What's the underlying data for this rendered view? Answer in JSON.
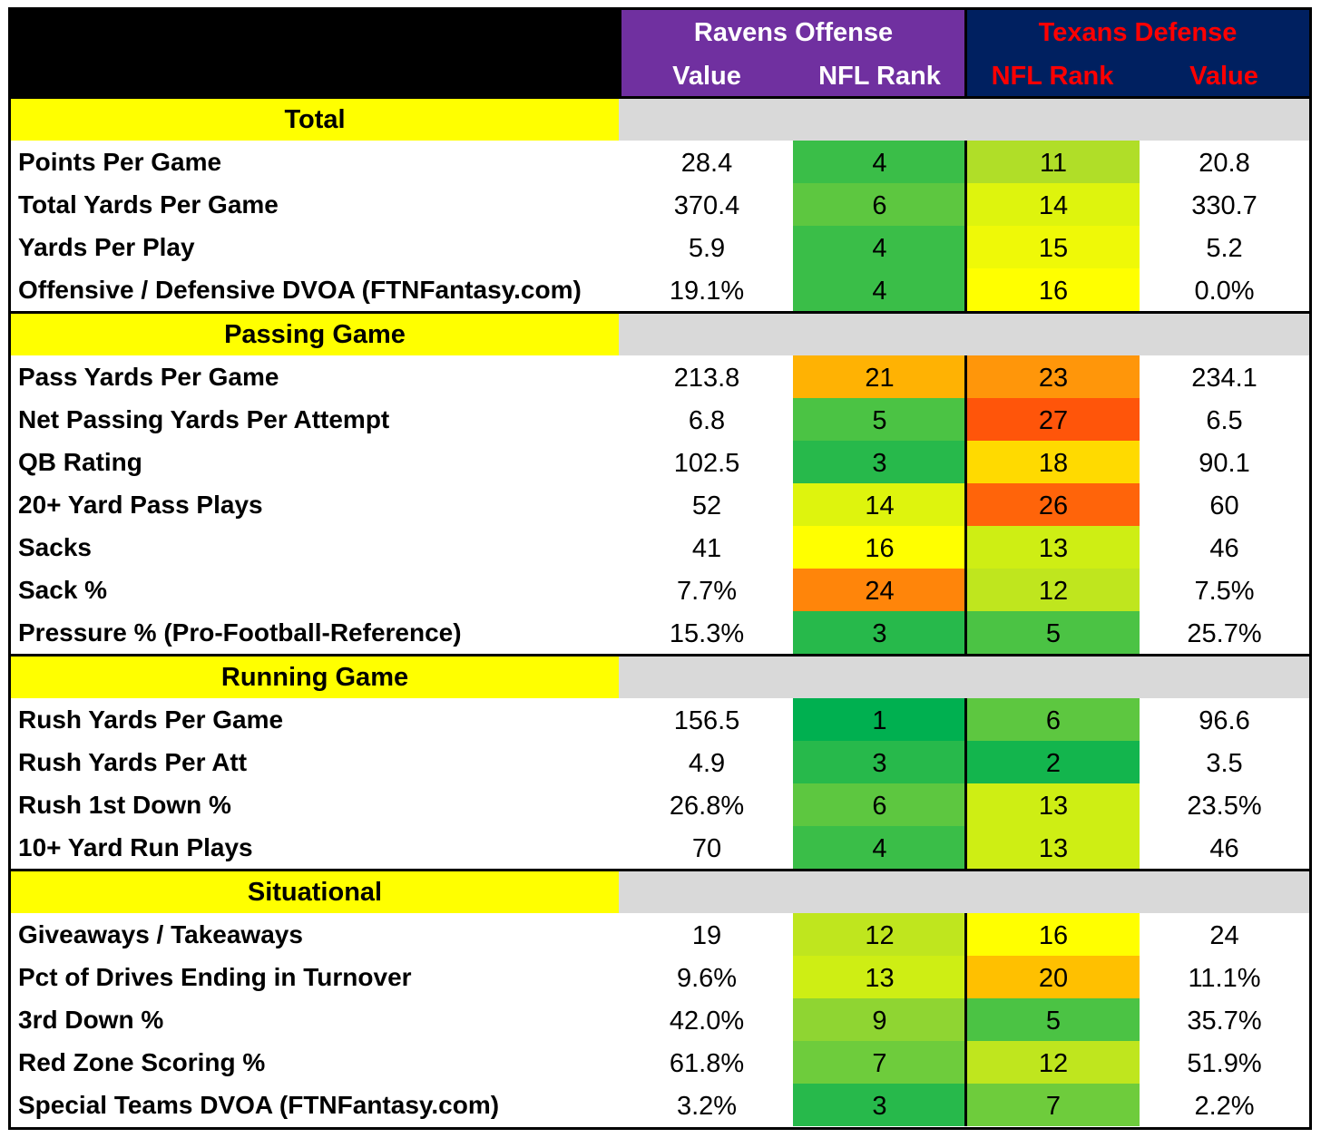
{
  "header": {
    "offense_team": "Ravens Offense",
    "defense_team": "Texans Defense",
    "col_value": "Value",
    "col_nfl_rank": "NFL Rank",
    "offense_color": "#7030a0",
    "defense_color": "#002060",
    "defense_text_color": "#ff0000"
  },
  "sections": [
    {
      "title": "Total",
      "rows": [
        {
          "label": "Points Per Game",
          "off_value": "28.4",
          "off_rank": "4",
          "def_rank": "11",
          "def_value": "20.8"
        },
        {
          "label": "Total Yards Per Game",
          "off_value": "370.4",
          "off_rank": "6",
          "def_rank": "14",
          "def_value": "330.7"
        },
        {
          "label": "Yards Per Play",
          "off_value": "5.9",
          "off_rank": "4",
          "def_rank": "15",
          "def_value": "5.2"
        },
        {
          "label": "Offensive / Defensive DVOA (FTNFantasy.com)",
          "off_value": "19.1%",
          "off_rank": "4",
          "def_rank": "16",
          "def_value": "0.0%"
        }
      ]
    },
    {
      "title": "Passing Game",
      "rows": [
        {
          "label": "Pass Yards Per Game",
          "off_value": "213.8",
          "off_rank": "21",
          "def_rank": "23",
          "def_value": "234.1"
        },
        {
          "label": "Net Passing Yards Per Attempt",
          "off_value": "6.8",
          "off_rank": "5",
          "def_rank": "27",
          "def_value": "6.5"
        },
        {
          "label": "QB Rating",
          "off_value": "102.5",
          "off_rank": "3",
          "def_rank": "18",
          "def_value": "90.1"
        },
        {
          "label": "20+ Yard Pass Plays",
          "off_value": "52",
          "off_rank": "14",
          "def_rank": "26",
          "def_value": "60"
        },
        {
          "label": "Sacks",
          "off_value": "41",
          "off_rank": "16",
          "def_rank": "13",
          "def_value": "46"
        },
        {
          "label": "Sack %",
          "off_value": "7.7%",
          "off_rank": "24",
          "def_rank": "12",
          "def_value": "7.5%"
        },
        {
          "label": "Pressure % (Pro-Football-Reference)",
          "off_value": "15.3%",
          "off_rank": "3",
          "def_rank": "5",
          "def_value": "25.7%"
        }
      ]
    },
    {
      "title": "Running Game",
      "rows": [
        {
          "label": "Rush Yards Per Game",
          "off_value": "156.5",
          "off_rank": "1",
          "def_rank": "6",
          "def_value": "96.6"
        },
        {
          "label": "Rush Yards Per Att",
          "off_value": "4.9",
          "off_rank": "3",
          "def_rank": "2",
          "def_value": "3.5"
        },
        {
          "label": "Rush 1st Down %",
          "off_value": "26.8%",
          "off_rank": "6",
          "def_rank": "13",
          "def_value": "23.5%"
        },
        {
          "label": "10+ Yard Run Plays",
          "off_value": "70",
          "off_rank": "4",
          "def_rank": "13",
          "def_value": "46"
        }
      ]
    },
    {
      "title": "Situational",
      "rows": [
        {
          "label": "Giveaways / Takeaways",
          "off_value": "19",
          "off_rank": "12",
          "def_rank": "16",
          "def_value": "24"
        },
        {
          "label": "Pct of Drives Ending in Turnover",
          "off_value": "9.6%",
          "off_rank": "13",
          "def_rank": "20",
          "def_value": "11.1%"
        },
        {
          "label": "3rd Down %",
          "off_value": "42.0%",
          "off_rank": "9",
          "def_rank": "5",
          "def_value": "35.7%"
        },
        {
          "label": "Red Zone Scoring %",
          "off_value": "61.8%",
          "off_rank": "7",
          "def_rank": "12",
          "def_value": "51.9%"
        },
        {
          "label": "Special Teams DVOA  (FTNFantasy.com)",
          "off_value": "3.2%",
          "off_rank": "3",
          "def_rank": "7",
          "def_value": "2.2%"
        }
      ]
    }
  ]
}
